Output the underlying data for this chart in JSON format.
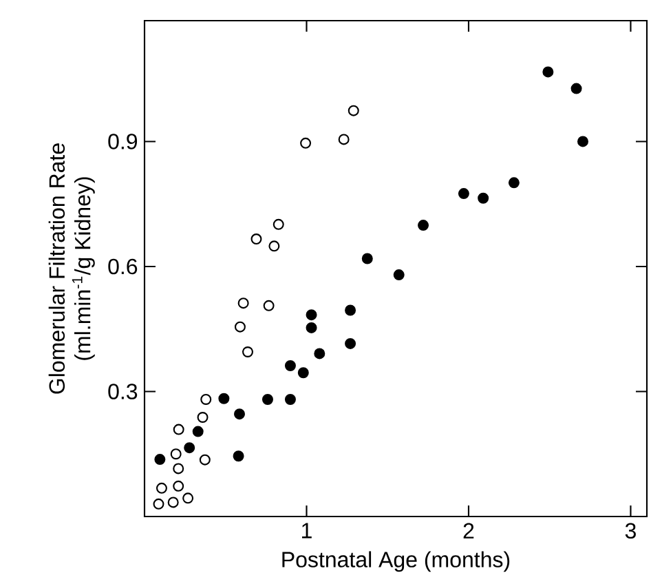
{
  "chart_data": {
    "type": "scatter",
    "xlabel": "Postnatal Age (months)",
    "ylabel": "Glomerular Filtration Rate\n(ml.min$^{-1}$/g Kidney)",
    "xlim": [
      0,
      3.1
    ],
    "ylim": [
      0,
      1.19
    ],
    "xticks": [
      1,
      2,
      3
    ],
    "yticks": [
      0.3,
      0.6,
      0.9
    ],
    "marker": "circle",
    "grid": false,
    "series": [
      {
        "color": "#000000",
        "x": [
          0.095,
          0.277,
          0.33,
          0.49,
          0.586,
          0.58,
          0.76,
          0.9,
          0.9,
          0.98,
          1.08,
          1.03,
          1.03,
          1.27,
          1.27,
          1.375,
          1.57,
          1.72,
          1.97,
          2.09,
          2.28,
          2.49,
          2.665,
          2.705
        ],
        "values": [
          0.137,
          0.165,
          0.204,
          0.283,
          0.246,
          0.145,
          0.281,
          0.281,
          0.362,
          0.345,
          0.391,
          0.453,
          0.484,
          0.495,
          0.415,
          0.619,
          0.58,
          0.699,
          0.775,
          0.764,
          0.801,
          1.067,
          1.027,
          0.9
        ]
      },
      {
        "color": "#ffffff",
        "x": [
          0.087,
          0.177,
          0.268,
          0.106,
          0.209,
          0.209,
          0.194,
          0.211,
          0.373,
          0.359,
          0.379,
          0.59,
          0.637,
          0.61,
          0.767,
          0.69,
          0.8,
          0.827,
          0.994,
          1.23,
          1.29
        ],
        "values": [
          0.03,
          0.034,
          0.044,
          0.068,
          0.073,
          0.115,
          0.15,
          0.209,
          0.136,
          0.238,
          0.281,
          0.455,
          0.395,
          0.512,
          0.506,
          0.666,
          0.649,
          0.701,
          0.896,
          0.905,
          0.974
        ]
      }
    ]
  }
}
